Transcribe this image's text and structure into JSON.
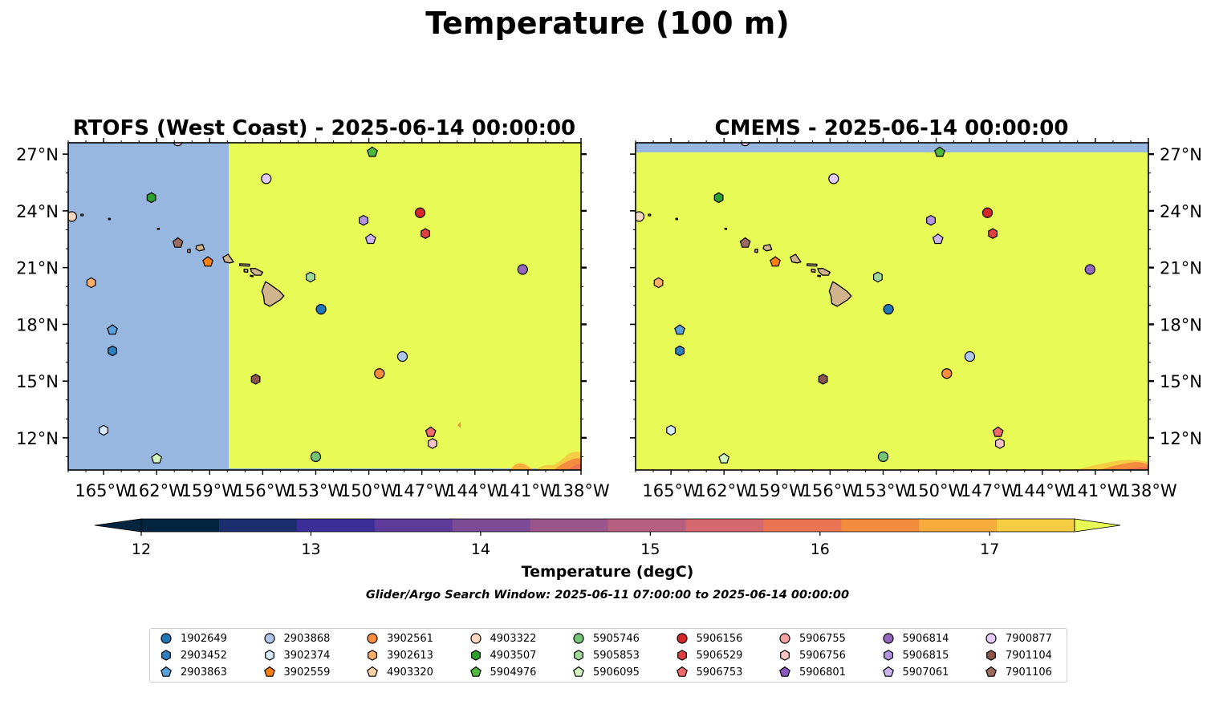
{
  "title": "Temperature (100 m)",
  "colors": {
    "land": "#d2b48c",
    "missing": "#97b6e0",
    "warm_field": "#e8fa56",
    "coast": "#000000"
  },
  "panels": [
    {
      "key": "left",
      "title": "RTOFS (West Coast) - 2025-06-14 00:00:00",
      "note": "western part of domain shows no data (light blue); rest above 17.5 degC",
      "ylabel_side": "left"
    },
    {
      "key": "right",
      "title": "CMEMS - 2025-06-14 00:00:00",
      "note": "thin no-data strip along top; field above 17.5 degC",
      "ylabel_side": "right"
    }
  ],
  "map_extent": {
    "lon": [
      -167,
      -138
    ],
    "lat": [
      10.3,
      27.6
    ]
  },
  "x_ticks": [
    {
      "lon": -165,
      "label": "165°W"
    },
    {
      "lon": -162,
      "label": "162°W"
    },
    {
      "lon": -159,
      "label": "159°W"
    },
    {
      "lon": -156,
      "label": "156°W"
    },
    {
      "lon": -153,
      "label": "153°W"
    },
    {
      "lon": -150,
      "label": "150°W"
    },
    {
      "lon": -147,
      "label": "147°W"
    },
    {
      "lon": -144,
      "label": "144°W"
    },
    {
      "lon": -141,
      "label": "141°W"
    },
    {
      "lon": -138,
      "label": "138°W"
    }
  ],
  "y_ticks": [
    {
      "lat": 27,
      "label": "27°N"
    },
    {
      "lat": 24,
      "label": "24°N"
    },
    {
      "lat": 21,
      "label": "21°N"
    },
    {
      "lat": 18,
      "label": "18°N"
    },
    {
      "lat": 15,
      "label": "15°N"
    },
    {
      "lat": 12,
      "label": "12°N"
    }
  ],
  "colorbar": {
    "label": "Temperature (degC)",
    "ticks": [
      "12",
      "13",
      "14",
      "15",
      "16",
      "17"
    ],
    "range": [
      12,
      17.5
    ],
    "step": 0.5,
    "extend": "both",
    "colors": [
      "#03253f",
      "#1b2f6e",
      "#3b2e96",
      "#5c3b9a",
      "#7b4b95",
      "#9b568c",
      "#b65f7f",
      "#d3686f",
      "#eb7552",
      "#f48c3d",
      "#f7ac3c",
      "#f4cd42"
    ],
    "under_color": "#03253f",
    "over_color": "#e8fa56"
  },
  "search_window": "Glider/Argo Search Window: 2025-06-11 07:00:00 to 2025-06-14 00:00:00",
  "legend": [
    {
      "id": "1902649",
      "color": "#1f77b4",
      "marker": "circle"
    },
    {
      "id": "2903452",
      "color": "#2e7fbf",
      "marker": "hexagon"
    },
    {
      "id": "2903863",
      "color": "#5aa0d8",
      "marker": "pentagon"
    },
    {
      "id": "2903868",
      "color": "#aec7e8",
      "marker": "circle"
    },
    {
      "id": "3902374",
      "color": "#d6e9fa",
      "marker": "hexagon"
    },
    {
      "id": "3902559",
      "color": "#ff7f0e",
      "marker": "pentagon"
    },
    {
      "id": "3902561",
      "color": "#fd8d3c",
      "marker": "circle"
    },
    {
      "id": "3902613",
      "color": "#fdae6b",
      "marker": "hexagon"
    },
    {
      "id": "4903320",
      "color": "#fdd0a2",
      "marker": "pentagon"
    },
    {
      "id": "4903322",
      "color": "#fdd8c0",
      "marker": "circle"
    },
    {
      "id": "4903507",
      "color": "#2ca02c",
      "marker": "hexagon"
    },
    {
      "id": "5904976",
      "color": "#4dba3d",
      "marker": "pentagon"
    },
    {
      "id": "5905746",
      "color": "#74c476",
      "marker": "circle"
    },
    {
      "id": "5905853",
      "color": "#a1d99b",
      "marker": "hexagon"
    },
    {
      "id": "5906095",
      "color": "#d2f5c0",
      "marker": "pentagon"
    },
    {
      "id": "5906156",
      "color": "#d62728",
      "marker": "circle"
    },
    {
      "id": "5906529",
      "color": "#e04040",
      "marker": "hexagon"
    },
    {
      "id": "5906753",
      "color": "#f06a6a",
      "marker": "pentagon"
    },
    {
      "id": "5906755",
      "color": "#f2a0a0",
      "marker": "circle"
    },
    {
      "id": "5906756",
      "color": "#fbc4c4",
      "marker": "hexagon"
    },
    {
      "id": "5906801",
      "color": "#8c55c0",
      "marker": "pentagon"
    },
    {
      "id": "5906814",
      "color": "#9467bd",
      "marker": "circle"
    },
    {
      "id": "5906815",
      "color": "#b294e0",
      "marker": "hexagon"
    },
    {
      "id": "5907061",
      "color": "#cdb4f0",
      "marker": "pentagon"
    },
    {
      "id": "7900877",
      "color": "#e3ccf8",
      "marker": "circle"
    },
    {
      "id": "7901104",
      "color": "#8c564b",
      "marker": "hexagon"
    },
    {
      "id": "7901106",
      "color": "#9c6a5e",
      "marker": "pentagon"
    }
  ],
  "platforms": [
    {
      "id": "1902649",
      "lon": -152.7,
      "lat": 18.8
    },
    {
      "id": "2903452",
      "lon": -164.5,
      "lat": 16.6
    },
    {
      "id": "2903863",
      "lon": -164.5,
      "lat": 17.7
    },
    {
      "id": "2903868",
      "lon": -148.1,
      "lat": 16.3
    },
    {
      "id": "3902374",
      "lon": -165.0,
      "lat": 12.4
    },
    {
      "id": "3902559",
      "lon": -159.1,
      "lat": 21.3
    },
    {
      "id": "3902561",
      "lon": -149.4,
      "lat": 15.4
    },
    {
      "id": "3902613",
      "lon": -165.7,
      "lat": 20.2
    },
    {
      "id": "4903322",
      "lon": -166.8,
      "lat": 23.7
    },
    {
      "id": "4903507",
      "lon": -162.3,
      "lat": 24.7
    },
    {
      "id": "5904976",
      "lon": -149.8,
      "lat": 27.1
    },
    {
      "id": "5905746",
      "lon": -153.0,
      "lat": 11.0
    },
    {
      "id": "5905853",
      "lon": -153.3,
      "lat": 20.5
    },
    {
      "id": "5906095",
      "lon": -162.0,
      "lat": 10.9
    },
    {
      "id": "5906156",
      "lon": -147.1,
      "lat": 23.9
    },
    {
      "id": "5906529",
      "lon": -146.8,
      "lat": 22.8
    },
    {
      "id": "5906753",
      "lon": -146.5,
      "lat": 12.3
    },
    {
      "id": "5906756",
      "lon": -146.4,
      "lat": 11.7
    },
    {
      "id": "5906814",
      "lon": -141.3,
      "lat": 20.9
    },
    {
      "id": "5906815",
      "lon": -150.3,
      "lat": 23.5
    },
    {
      "id": "5907061",
      "lon": -149.9,
      "lat": 22.5
    },
    {
      "id": "7900877",
      "lon": -155.8,
      "lat": 25.7
    },
    {
      "id": "7900877",
      "lon": -160.8,
      "lat": 27.7
    },
    {
      "id": "7901104",
      "lon": -156.4,
      "lat": 15.1
    },
    {
      "id": "7901106",
      "lon": -160.8,
      "lat": 22.3
    }
  ]
}
